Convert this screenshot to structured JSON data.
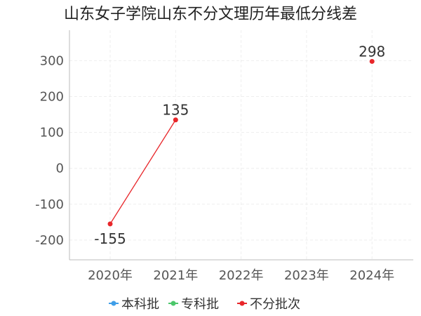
{
  "chart_data": {
    "type": "line",
    "title": "山东女子学院山东不分文理历年最低分线差",
    "xlabel": "",
    "ylabel": "",
    "categories": [
      "2020年",
      "2021年",
      "2022年",
      "2023年",
      "2024年"
    ],
    "yticks": [
      300,
      200,
      100,
      0,
      -100,
      -200
    ],
    "ytick_labels": [
      "300",
      "200",
      "100",
      "0",
      "-100",
      "-200"
    ],
    "ylim": [
      -255,
      385
    ],
    "grid": true,
    "legend_position": "bottom",
    "series": [
      {
        "name": "本科批",
        "color": "#3f9ee8",
        "values": [
          null,
          null,
          null,
          null,
          null
        ],
        "labels": []
      },
      {
        "name": "专科批",
        "color": "#4cc76b",
        "values": [
          null,
          null,
          null,
          null,
          null
        ],
        "labels": []
      },
      {
        "name": "不分批次",
        "color": "#e8262a",
        "values": [
          -155,
          135,
          null,
          null,
          298
        ],
        "labels": [
          "-155",
          "135",
          "",
          "",
          "298"
        ]
      }
    ]
  }
}
